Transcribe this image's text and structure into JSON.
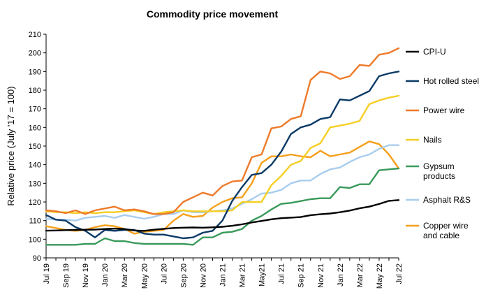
{
  "chart_data": {
    "type": "line",
    "title": "Commodity  price movement",
    "ylabel": "Relative price (July '17 = 100)",
    "xlabel": "",
    "ylim": [
      90,
      210
    ],
    "yticks": [
      90,
      100,
      110,
      120,
      130,
      140,
      150,
      160,
      170,
      180,
      190,
      200,
      210
    ],
    "grid": false,
    "legend": "right",
    "x": [
      "Jul 19",
      "Aug 19",
      "Sep 19",
      "Oct 19",
      "Nov 19",
      "Dec 19",
      "Jan 20",
      "Feb 20",
      "Mar 20",
      "Apr 20",
      "May 20",
      "Jun 20",
      "Jul 20",
      "Aug 20",
      "Sep 20",
      "Oct 20",
      "Nov 20",
      "Dec 20",
      "Jan 21",
      "Feb 21",
      "Mar 21",
      "Apr 21",
      "May21",
      "Jun 21",
      "Jul 21",
      "Aug 21",
      "Sep 21",
      "Oct 21",
      "Nov 21",
      "Dec 21",
      "Jan 22",
      "Feb 22",
      "Mar 22",
      "Apr 22",
      "May 22",
      "Jun 22",
      "Jul 22"
    ],
    "xtick_labels": [
      "Jul 19",
      "",
      "Sep 19",
      "",
      "Nov 19",
      "",
      "Jan 20",
      "",
      "Mar 20",
      "",
      "May 20",
      "",
      "Jul 20",
      "",
      "Sep 20",
      "",
      "Nov 20",
      "",
      "Jan 21",
      "",
      "Mar 21",
      "",
      "May21",
      "",
      "Jul 21",
      "",
      "Sep 21",
      "",
      "Nov 21",
      "",
      "Jan 22",
      "",
      "Mar 22",
      "",
      "May 22",
      "",
      "Jul 22"
    ],
    "series": [
      {
        "name": "CPI-U",
        "color": "#000000",
        "values": [
          104.6,
          104.7,
          104.9,
          105.0,
          105.1,
          105.2,
          105.5,
          105.7,
          105.5,
          104.7,
          104.5,
          105.1,
          105.6,
          106.0,
          106.2,
          106.3,
          106.2,
          106.4,
          106.7,
          107.2,
          108.0,
          109.0,
          109.8,
          110.7,
          111.3,
          111.6,
          111.9,
          112.9,
          113.4,
          113.8,
          114.5,
          115.4,
          116.6,
          117.5,
          118.9,
          120.6,
          121.0
        ]
      },
      {
        "name": "Hot rolled steel",
        "color": "#0b3a66",
        "values": [
          113.0,
          110.5,
          110.0,
          106.5,
          104.5,
          101.0,
          105.0,
          104.5,
          105.0,
          105.0,
          103.0,
          102.5,
          102.5,
          101.5,
          100.5,
          101.0,
          103.5,
          104.5,
          110.0,
          120.5,
          128.0,
          134.5,
          135.5,
          140.0,
          147.0,
          156.5,
          160.0,
          161.5,
          164.5,
          165.5,
          175.0,
          174.5,
          177.0,
          179.5,
          187.5,
          189.0,
          190.0
        ]
      },
      {
        "name": "Power wire",
        "color": "#ee7a2a",
        "values": [
          115.5,
          115.0,
          114.0,
          115.5,
          113.5,
          115.5,
          116.5,
          117.5,
          115.5,
          116.0,
          115.0,
          113.5,
          113.5,
          114.5,
          120.0,
          122.5,
          125.0,
          123.5,
          128.5,
          131.0,
          131.5,
          144.0,
          145.5,
          159.5,
          160.5,
          164.5,
          166.0,
          185.5,
          190.0,
          189.0,
          186.0,
          187.5,
          193.5,
          193.0,
          199.0,
          200.0,
          202.5
        ]
      },
      {
        "name": "Nails",
        "color": "#f5cf23",
        "values": [
          115.0,
          114.5,
          114.5,
          114.0,
          114.5,
          114.0,
          114.5,
          114.5,
          115.0,
          115.5,
          114.5,
          113.5,
          114.5,
          115.0,
          115.5,
          115.0,
          115.0,
          115.0,
          115.0,
          115.5,
          120.0,
          120.0,
          120.0,
          129.0,
          134.0,
          140.0,
          142.0,
          149.0,
          151.5,
          160.0,
          161.0,
          162.0,
          163.5,
          172.5,
          174.5,
          176.0,
          177.0
        ]
      },
      {
        "name": "Gypsum products",
        "color": "#3a9a5c",
        "values": [
          97.0,
          97.0,
          97.0,
          97.0,
          97.5,
          97.5,
          100.5,
          99.0,
          99.0,
          98.0,
          97.5,
          97.5,
          97.5,
          97.5,
          97.5,
          97.0,
          101.0,
          101.0,
          103.5,
          104.0,
          105.5,
          110.0,
          112.5,
          116.0,
          119.0,
          119.5,
          120.5,
          121.5,
          122.0,
          122.0,
          128.0,
          127.5,
          129.5,
          129.5,
          137.0,
          137.5,
          138.0
        ]
      },
      {
        "name": "Asphalt R&S",
        "color": "#a8cdee",
        "values": [
          111.0,
          110.5,
          110.5,
          110.0,
          111.5,
          112.0,
          112.5,
          111.5,
          113.0,
          112.0,
          111.0,
          112.0,
          113.5,
          113.5,
          115.5,
          114.5,
          114.5,
          115.0,
          115.5,
          116.5,
          119.0,
          121.5,
          124.5,
          125.0,
          126.5,
          130.0,
          131.5,
          131.5,
          135.0,
          137.5,
          138.5,
          141.5,
          144.0,
          145.5,
          148.5,
          150.5,
          150.5
        ]
      },
      {
        "name": "Copper wire and cable",
        "color": "#f5a01a",
        "values": [
          107.0,
          106.0,
          105.0,
          104.5,
          105.0,
          106.5,
          107.5,
          107.0,
          105.5,
          103.0,
          104.0,
          104.5,
          105.0,
          110.0,
          113.5,
          112.0,
          112.5,
          117.0,
          120.0,
          122.0,
          122.5,
          130.0,
          141.0,
          144.5,
          144.5,
          145.5,
          144.5,
          144.0,
          147.5,
          144.5,
          145.5,
          146.5,
          149.5,
          152.5,
          151.0,
          145.5,
          138.0
        ]
      }
    ],
    "legend_entries": [
      {
        "lines": [
          "CPI-U"
        ],
        "color": "#000000"
      },
      {
        "lines": [
          "Hot rolled steel"
        ],
        "color": "#0b3a66"
      },
      {
        "lines": [
          "Power wire"
        ],
        "color": "#ee7a2a"
      },
      {
        "lines": [
          "Nails"
        ],
        "color": "#f5cf23"
      },
      {
        "lines": [
          "Gypsum",
          "products"
        ],
        "color": "#3a9a5c"
      },
      {
        "lines": [
          "Asphalt R&S"
        ],
        "color": "#a8cdee"
      },
      {
        "lines": [
          "Copper wire",
          "and cable"
        ],
        "color": "#f5a01a"
      }
    ]
  }
}
